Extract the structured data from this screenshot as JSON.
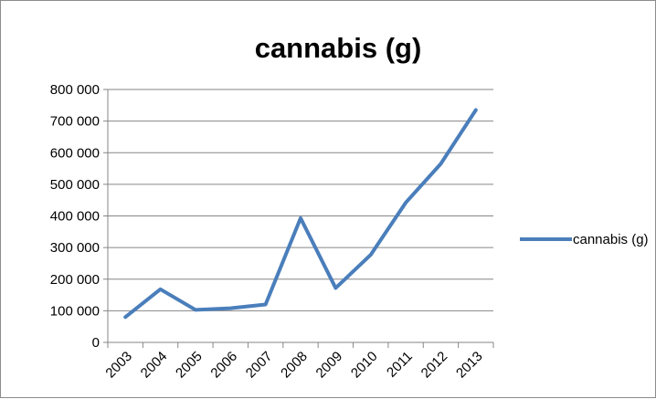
{
  "chart_data": {
    "type": "line",
    "title": "cannabis (g)",
    "categories": [
      "2003",
      "2004",
      "2005",
      "2006",
      "2007",
      "2008",
      "2009",
      "2010",
      "2011",
      "2012",
      "2013"
    ],
    "series": [
      {
        "name": "cannabis (g)",
        "values": [
          80000,
          168000,
          103000,
          108000,
          120000,
          393000,
          172000,
          277000,
          442000,
          565000,
          735000
        ],
        "color": "#4a7ebb"
      }
    ],
    "yticks": [
      "0",
      "100 000",
      "200 000",
      "300 000",
      "400 000",
      "500 000",
      "600 000",
      "700 000",
      "800 000"
    ],
    "ylim": [
      0,
      800000
    ],
    "grid": true,
    "legend_position": "right"
  }
}
